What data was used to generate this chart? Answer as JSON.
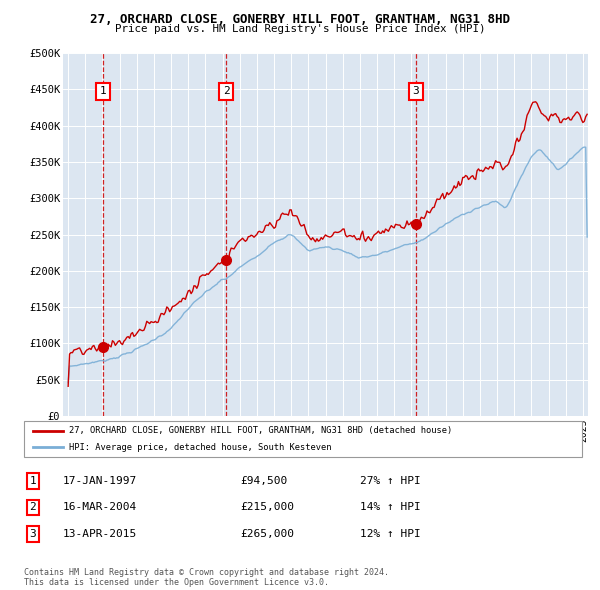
{
  "title": "27, ORCHARD CLOSE, GONERBY HILL FOOT, GRANTHAM, NG31 8HD",
  "subtitle": "Price paid vs. HM Land Registry's House Price Index (HPI)",
  "ylim": [
    0,
    500000
  ],
  "yticks": [
    0,
    50000,
    100000,
    150000,
    200000,
    250000,
    300000,
    350000,
    400000,
    450000,
    500000
  ],
  "ytick_labels": [
    "£0",
    "£50K",
    "£100K",
    "£150K",
    "£200K",
    "£250K",
    "£300K",
    "£350K",
    "£400K",
    "£450K",
    "£500K"
  ],
  "xlim_start": 1994.7,
  "xlim_end": 2025.3,
  "background_color": "#dce6f1",
  "plot_bg_color": "#dce6f1",
  "red_line_color": "#cc0000",
  "blue_line_color": "#7aaed6",
  "marker_color": "#cc0000",
  "sale_points": [
    {
      "year": 1997.04,
      "price": 94500,
      "label": "1"
    },
    {
      "year": 2004.21,
      "price": 215000,
      "label": "2"
    },
    {
      "year": 2015.28,
      "price": 265000,
      "label": "3"
    }
  ],
  "legend_red_label": "27, ORCHARD CLOSE, GONERBY HILL FOOT, GRANTHAM, NG31 8HD (detached house)",
  "legend_blue_label": "HPI: Average price, detached house, South Kesteven",
  "table_rows": [
    {
      "num": "1",
      "date": "17-JAN-1997",
      "price": "£94,500",
      "change": "27% ↑ HPI"
    },
    {
      "num": "2",
      "date": "16-MAR-2004",
      "price": "£215,000",
      "change": "14% ↑ HPI"
    },
    {
      "num": "3",
      "date": "13-APR-2015",
      "price": "£265,000",
      "change": "12% ↑ HPI"
    }
  ],
  "footer": "Contains HM Land Registry data © Crown copyright and database right 2024.\nThis data is licensed under the Open Government Licence v3.0."
}
